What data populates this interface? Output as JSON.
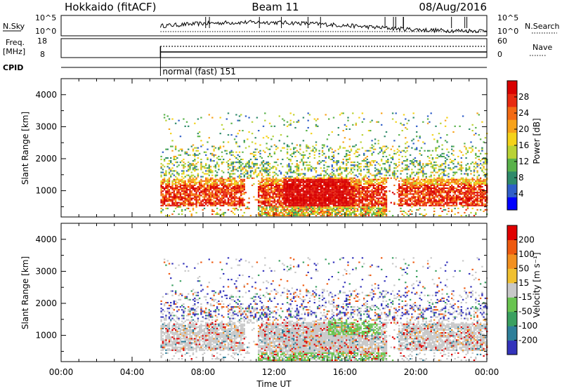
{
  "header": {
    "station": "Hokkaido (fitACF)",
    "beam": "Beam 11",
    "date": "08/Aug/2016"
  },
  "top_panels": {
    "nsky_label": "N.Sky",
    "nsearch_label": "N.Search",
    "freq_label": "Freq.",
    "freq_unit": "[MHz]",
    "nave_label": "Nave",
    "cpid_label": "CPID",
    "noise_ticks": [
      "10^5",
      "10^0"
    ],
    "noise_ticks_right": [
      "10^5",
      "10^0"
    ],
    "freq_ticks": [
      "18",
      "8"
    ],
    "nave_ticks": [
      "60",
      "0"
    ],
    "cpid_text": "normal (fast) 151"
  },
  "colors": {
    "power_scale": [
      "#0000ff",
      "#2f5ec8",
      "#2f8a6a",
      "#59b24a",
      "#b9d235",
      "#f4d21a",
      "#f7a21a",
      "#f36a14",
      "#e82a10",
      "#d80000"
    ],
    "velocity_scale": [
      "#3333bb",
      "#2e7f9a",
      "#3aa060",
      "#69c450",
      "#c8c8c8",
      "#f0c030",
      "#f29020",
      "#ee5a10",
      "#e00000"
    ]
  },
  "chart_data": [
    {
      "type": "heatmap",
      "name": "power",
      "ylabel": "Slant Range [km]",
      "xlabel": "",
      "x_ticks": [
        "00:00",
        "04:00",
        "08:00",
        "12:00",
        "16:00",
        "20:00",
        "00:00"
      ],
      "y_ticks": [
        1000,
        2000,
        3000,
        4000
      ],
      "xlim_hours": [
        0,
        24
      ],
      "ylim_km": [
        180,
        4500
      ],
      "colorbar": {
        "label": "Power [dB]",
        "ticks": [
          4,
          8,
          12,
          16,
          20,
          24,
          28
        ],
        "range": [
          0,
          32
        ]
      },
      "data_start_hour": 5.6
    },
    {
      "type": "heatmap",
      "name": "velocity",
      "ylabel": "Slant Range [km]",
      "xlabel": "Time UT",
      "x_ticks": [
        "00:00",
        "04:00",
        "08:00",
        "12:00",
        "16:00",
        "20:00",
        "00:00"
      ],
      "y_ticks": [
        1000,
        2000,
        3000,
        4000
      ],
      "xlim_hours": [
        0,
        24
      ],
      "ylim_km": [
        180,
        4500
      ],
      "colorbar": {
        "label": "Velocity [m s⁻¹]",
        "ticks": [
          200,
          100,
          50,
          15,
          -15,
          -50,
          -100,
          -200
        ]
      },
      "data_start_hour": 5.6
    }
  ]
}
